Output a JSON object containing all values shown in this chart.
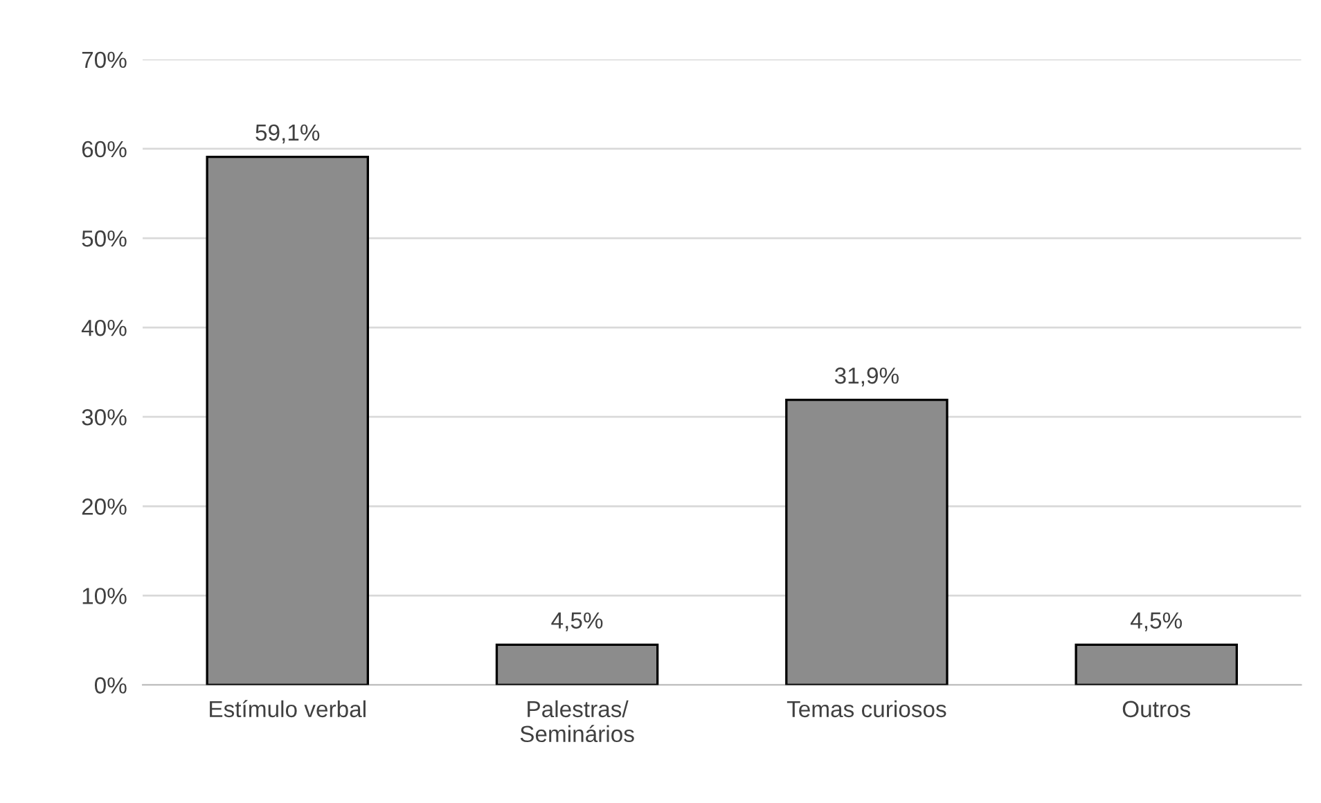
{
  "chart_data": {
    "type": "bar",
    "categories": [
      "Estímulo verbal",
      "Palestras/\nSeminários",
      "Temas curiosos",
      "Outros"
    ],
    "values": [
      59.1,
      4.5,
      31.9,
      4.5
    ],
    "value_labels": [
      "59,1%",
      "4,5%",
      "31,9%",
      "4,5%"
    ],
    "color": "#8c8c8c",
    "ylim": [
      0,
      70
    ],
    "yticks": [
      {
        "value": 0,
        "label": "0%"
      },
      {
        "value": 10,
        "label": "10%"
      },
      {
        "value": 20,
        "label": "20%"
      },
      {
        "value": 30,
        "label": "30%"
      },
      {
        "value": 40,
        "label": "40%"
      },
      {
        "value": 50,
        "label": "50%"
      },
      {
        "value": 60,
        "label": "60%"
      },
      {
        "value": 70,
        "label": "70%"
      }
    ],
    "grid": "y"
  }
}
